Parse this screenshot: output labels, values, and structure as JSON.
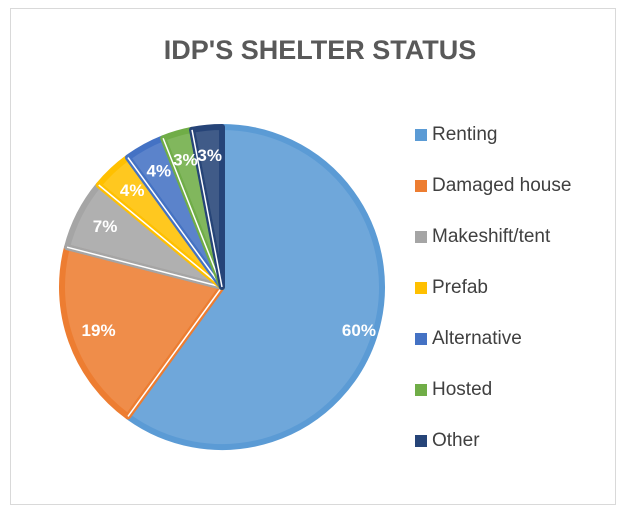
{
  "chart_data": {
    "type": "pie",
    "title": "IDP'S SHELTER STATUS",
    "categories": [
      "Renting",
      "Damaged house",
      "Makeshift/tent",
      "Prefab",
      "Alternative",
      "Hosted",
      "Other"
    ],
    "values": [
      60,
      19,
      7,
      4,
      4,
      3,
      3
    ],
    "value_labels": [
      "60%",
      "19%",
      "7%",
      "4%",
      "4%",
      "3%",
      "3%"
    ],
    "colors": [
      "#5b9bd5",
      "#ed7d31",
      "#a5a5a5",
      "#ffc000",
      "#4472c4",
      "#70ad47",
      "#264478"
    ],
    "legend": "right"
  }
}
